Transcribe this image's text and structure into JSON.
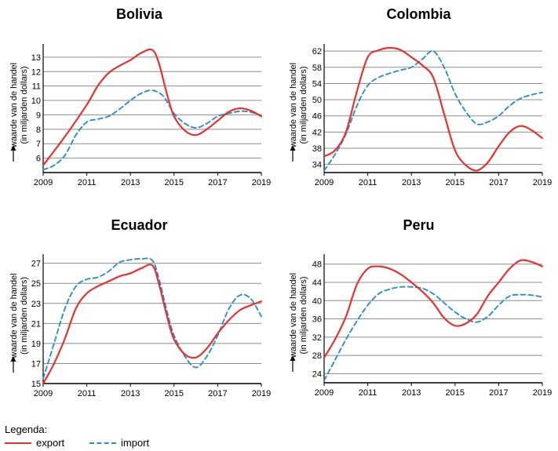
{
  "legend": {
    "title": "Legenda:",
    "export_label": "export",
    "import_label": "import"
  },
  "colors": {
    "export": "#e8312f",
    "import": "#2b8fcc",
    "grid": "#8c8c8c",
    "axis": "#000000"
  },
  "chart_data": [
    {
      "type": "line",
      "title": "Bolivia",
      "ylabel": "waarde van de handel",
      "ylabel_sub": "(in miljarden dollars)",
      "xlabel": "",
      "x_ticks": [
        2009,
        2011,
        2013,
        2015,
        2017,
        2019
      ],
      "y_ticks": [
        6,
        7,
        8,
        9,
        10,
        11,
        12,
        13
      ],
      "xlim": [
        2009,
        2019
      ],
      "ylim": [
        5,
        13.7
      ],
      "series": [
        {
          "name": "export",
          "x": [
            2009,
            2010,
            2011,
            2011.5,
            2012,
            2012.5,
            2013,
            2013.5,
            2014,
            2014.3,
            2014.7,
            2015,
            2015.5,
            2016,
            2016.5,
            2017,
            2017.5,
            2018,
            2018.5,
            2019
          ],
          "values": [
            5.5,
            7.5,
            9.7,
            11.0,
            11.9,
            12.4,
            12.8,
            13.3,
            13.5,
            12.6,
            10.3,
            8.9,
            7.9,
            7.6,
            8.0,
            8.6,
            9.2,
            9.45,
            9.3,
            8.9
          ]
        },
        {
          "name": "import",
          "x": [
            2009,
            2009.5,
            2010,
            2010.5,
            2011,
            2011.5,
            2012,
            2012.5,
            2013,
            2013.5,
            2014,
            2014.5,
            2015,
            2015.5,
            2016,
            2016.5,
            2017,
            2017.5,
            2018,
            2018.5,
            2019
          ],
          "values": [
            5.2,
            5.5,
            6.2,
            7.6,
            8.5,
            8.7,
            8.9,
            9.4,
            10.0,
            10.5,
            10.7,
            10.3,
            9.1,
            8.4,
            8.1,
            8.4,
            8.9,
            9.1,
            9.25,
            9.2,
            8.95
          ]
        }
      ]
    },
    {
      "type": "line",
      "title": "Colombia",
      "ylabel": "waarde van de handel",
      "ylabel_sub": "(in miljarden dollars)",
      "xlabel": "",
      "x_ticks": [
        2009,
        2011,
        2013,
        2015,
        2017,
        2019
      ],
      "y_ticks": [
        34,
        38,
        42,
        46,
        50,
        54,
        58,
        62
      ],
      "xlim": [
        2009,
        2019
      ],
      "ylim": [
        32,
        63
      ],
      "series": [
        {
          "name": "export",
          "x": [
            2009,
            2009.5,
            2010,
            2010.5,
            2011,
            2011.5,
            2012,
            2012.5,
            2013,
            2013.5,
            2014,
            2014.5,
            2015,
            2015.5,
            2016,
            2016.5,
            2017,
            2017.5,
            2018,
            2018.5,
            2019
          ],
          "values": [
            36,
            37.5,
            42,
            52,
            60.5,
            62.2,
            62.8,
            62.3,
            60.5,
            58.5,
            55.5,
            46.5,
            37.5,
            33.8,
            32.5,
            34.5,
            38.5,
            42.0,
            43.5,
            42.5,
            40.5
          ]
        },
        {
          "name": "import",
          "x": [
            2009,
            2009.5,
            2010,
            2010.5,
            2011,
            2011.5,
            2012,
            2012.5,
            2013,
            2013.5,
            2014,
            2014.5,
            2015,
            2015.5,
            2016,
            2016.5,
            2017,
            2017.5,
            2018,
            2018.5,
            2019
          ],
          "values": [
            32.5,
            36.5,
            41.5,
            48.5,
            53.5,
            55.5,
            56.5,
            57.3,
            58.0,
            60.0,
            62.0,
            58.0,
            51.5,
            47.0,
            44.0,
            44.5,
            46.0,
            48.5,
            50.3,
            51.2,
            51.8
          ]
        }
      ]
    },
    {
      "type": "line",
      "title": "Ecuador",
      "ylabel": "waarde van de handel",
      "ylabel_sub": "(in miljarden dollars)",
      "xlabel": "",
      "x_ticks": [
        2009,
        2011,
        2013,
        2015,
        2017,
        2019
      ],
      "y_ticks": [
        15,
        17,
        19,
        21,
        23,
        25,
        27
      ],
      "xlim": [
        2009,
        2019
      ],
      "ylim": [
        15,
        27.6
      ],
      "series": [
        {
          "name": "export",
          "x": [
            2009,
            2009.5,
            2010,
            2010.5,
            2011,
            2011.5,
            2012,
            2012.5,
            2013,
            2013.5,
            2014,
            2014.3,
            2014.7,
            2015,
            2015.5,
            2016,
            2016.5,
            2017,
            2017.5,
            2018,
            2018.5,
            2019
          ],
          "values": [
            15.0,
            17.0,
            19.5,
            22.5,
            24.0,
            24.7,
            25.2,
            25.7,
            26.0,
            26.5,
            26.8,
            25.0,
            21.5,
            19.4,
            17.9,
            17.6,
            18.5,
            20.0,
            21.3,
            22.3,
            22.8,
            23.2
          ]
        },
        {
          "name": "import",
          "x": [
            2009,
            2009.5,
            2010,
            2010.5,
            2011,
            2011.5,
            2012,
            2012.5,
            2013,
            2013.5,
            2014,
            2014.3,
            2014.7,
            2015,
            2015.5,
            2016,
            2016.5,
            2017,
            2017.5,
            2018,
            2018.5,
            2019
          ],
          "values": [
            15.5,
            19.0,
            22.5,
            24.7,
            25.4,
            25.6,
            26.2,
            27.1,
            27.35,
            27.45,
            27.3,
            25.5,
            22.0,
            19.8,
            17.7,
            16.6,
            17.7,
            19.8,
            22.4,
            23.8,
            23.5,
            21.7
          ]
        }
      ]
    },
    {
      "type": "line",
      "title": "Peru",
      "ylabel": "waarde van de handel",
      "ylabel_sub": "(in miljarden dollars)",
      "xlabel": "",
      "x_ticks": [
        2009,
        2011,
        2013,
        2015,
        2017,
        2019
      ],
      "y_ticks": [
        24,
        28,
        32,
        36,
        40,
        44,
        48
      ],
      "xlim": [
        2009,
        2019
      ],
      "ylim": [
        22,
        49.5
      ],
      "series": [
        {
          "name": "export",
          "x": [
            2009,
            2009.5,
            2010,
            2010.5,
            2011,
            2011.5,
            2012,
            2012.5,
            2013,
            2013.5,
            2014,
            2014.5,
            2015,
            2015.5,
            2016,
            2016.5,
            2017,
            2017.5,
            2018,
            2018.5,
            2019
          ],
          "values": [
            27.5,
            31.5,
            36.5,
            43.5,
            47.0,
            47.5,
            47.0,
            45.8,
            44.0,
            42.0,
            39.5,
            36.2,
            34.5,
            35.0,
            37.0,
            41.0,
            44.0,
            47.0,
            48.8,
            48.5,
            47.5
          ]
        },
        {
          "name": "import",
          "x": [
            2009,
            2009.5,
            2010,
            2010.5,
            2011,
            2011.5,
            2012,
            2012.5,
            2013,
            2013.5,
            2014,
            2014.5,
            2015,
            2015.5,
            2016,
            2016.5,
            2017,
            2017.5,
            2018,
            2018.5,
            2019
          ],
          "values": [
            22.5,
            27.0,
            31.5,
            35.5,
            39.0,
            41.5,
            42.5,
            43.0,
            43.0,
            42.7,
            41.5,
            39.5,
            37.5,
            36.0,
            35.3,
            36.5,
            39.0,
            41.0,
            41.3,
            41.2,
            40.8
          ]
        }
      ]
    }
  ]
}
